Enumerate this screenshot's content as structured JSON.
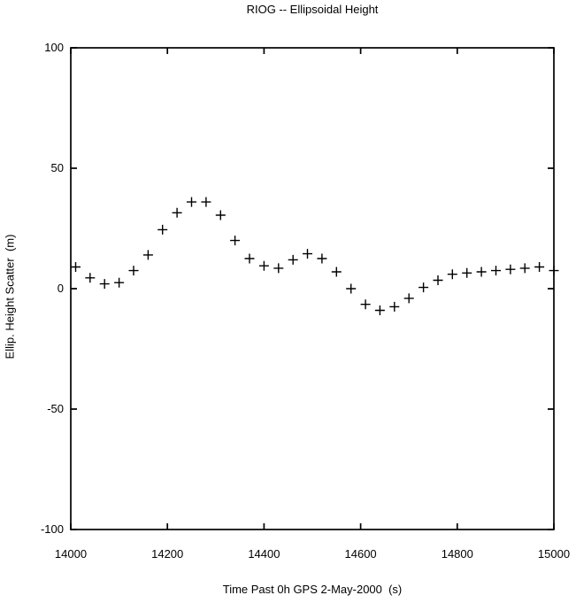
{
  "figure": {
    "title": "RIOG -- Ellipsoidal Height",
    "xlabel": "Time Past 0h GPS 2-May-2000  (s)",
    "ylabel": "Ellip. Height Scatter  (m)"
  },
  "colors": {
    "background": "#ffffff",
    "axis": "#000000",
    "marker": "#000000",
    "text": "#000000"
  },
  "chart_data": {
    "type": "scatter",
    "title": "RIOG -- Ellipsoidal Height",
    "xlabel": "Time Past 0h GPS 2-May-2000  (s)",
    "ylabel": "Ellip. Height Scatter  (m)",
    "marker": "plus",
    "grid": false,
    "legend": "none",
    "xlim": [
      14000,
      15000
    ],
    "ylim": [
      -100,
      100
    ],
    "x_ticks": [
      14000,
      14200,
      14400,
      14600,
      14800,
      15000
    ],
    "y_ticks": [
      100,
      50,
      0,
      -50,
      -100
    ],
    "x": [
      14010,
      14040,
      14070,
      14100,
      14130,
      14160,
      14190,
      14220,
      14250,
      14280,
      14310,
      14340,
      14370,
      14400,
      14430,
      14460,
      14490,
      14520,
      14550,
      14580,
      14610,
      14640,
      14670,
      14700,
      14730,
      14760,
      14790,
      14820,
      14850,
      14880,
      14910,
      14940,
      14970,
      15000
    ],
    "y": [
      9,
      4.5,
      2,
      2.5,
      7.5,
      14,
      24.5,
      31.5,
      36,
      36,
      30.5,
      20,
      12.5,
      9.5,
      8.5,
      12,
      14.5,
      12.5,
      7,
      0,
      -6.5,
      -9,
      -7.5,
      -4,
      0.5,
      3.5,
      6,
      6.5,
      7,
      7.5,
      8,
      8.5,
      9,
      7.5
    ]
  }
}
